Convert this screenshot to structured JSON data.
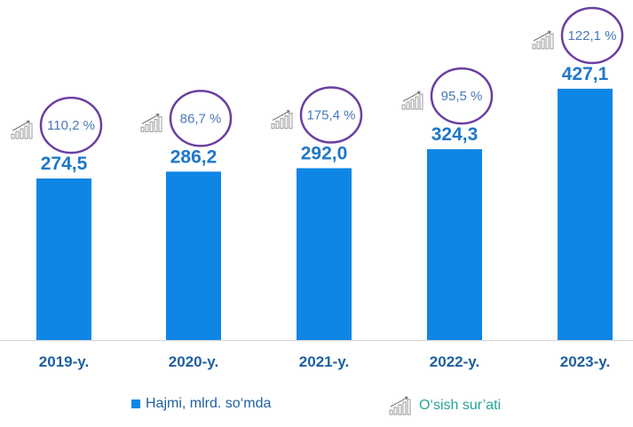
{
  "chart_data": {
    "type": "bar",
    "categories": [
      "2019-y.",
      "2020-y.",
      "2021-y.",
      "2022-y.",
      "2023-y."
    ],
    "series": [
      {
        "name": "Hajmi, mlrd. so‘mda",
        "values": [
          274.5,
          286.2,
          292.0,
          324.3,
          427.1
        ],
        "value_labels": [
          "274,5",
          "286,2",
          "292,0",
          "324,3",
          "427,1"
        ]
      },
      {
        "name": "O‘sish sur’ati",
        "values": [
          110.2,
          86.7,
          175.4,
          95.5,
          122.1
        ],
        "value_labels": [
          "110,2 %",
          "86,7 %",
          "175,4 %",
          "95,5 %",
          "122,1 %"
        ]
      }
    ],
    "ylim": [
      0,
      510
    ],
    "grid": false,
    "legend_position": "bottom"
  },
  "legend": {
    "volume_label": "Hajmi, mlrd. so‘mda",
    "growth_label": "O‘sish sur’ati"
  },
  "colors": {
    "bar": "#0f86e6",
    "value_text": "#1f77c8",
    "category_text": "#1f5f9f",
    "circle": "#6a3fa0",
    "growth_text": "#4a78b8",
    "legend_growth_text": "#2aa198",
    "legend_volume_text": "#1f5f9f"
  },
  "icons": {
    "growth": "rising-bars-icon"
  }
}
